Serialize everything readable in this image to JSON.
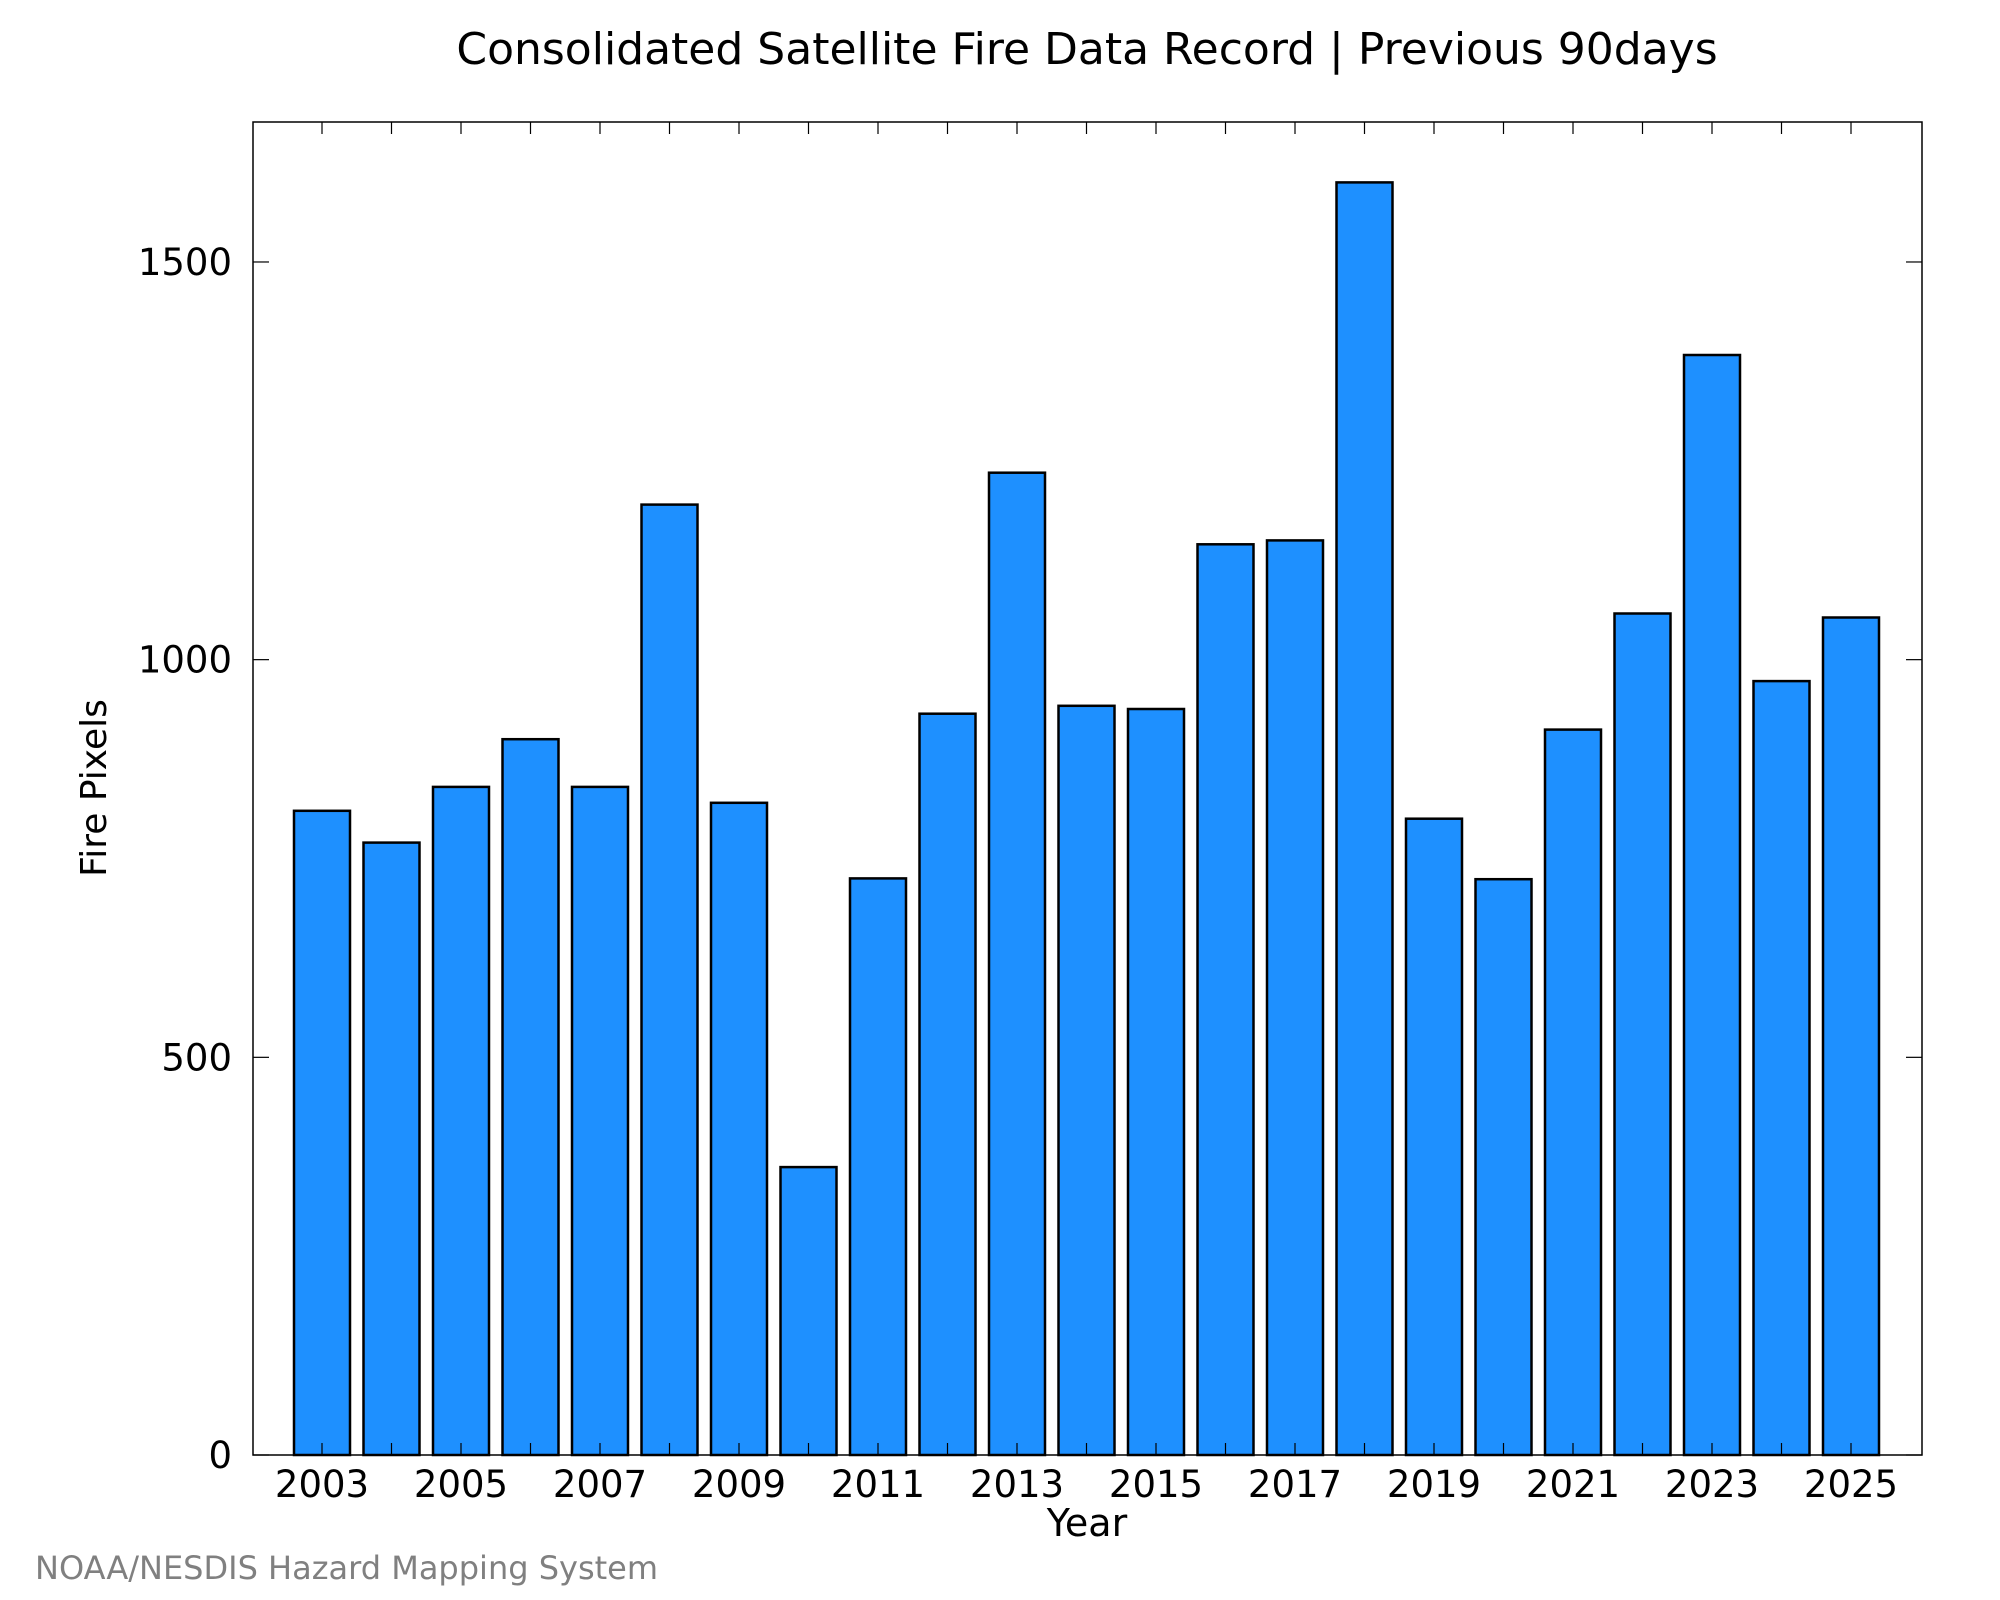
{
  "chart_data": {
    "type": "bar",
    "title": "Consolidated Satellite Fire Data Record | Previous 90days",
    "xlabel": "Year",
    "ylabel": "Fire Pixels",
    "categories": [
      "2003",
      "2004",
      "2005",
      "2006",
      "2007",
      "2008",
      "2009",
      "2010",
      "2011",
      "2012",
      "2013",
      "2014",
      "2015",
      "2016",
      "2017",
      "2018",
      "2019",
      "2020",
      "2021",
      "2022",
      "2023",
      "2024",
      "2025"
    ],
    "values": [
      810,
      770,
      840,
      900,
      840,
      1195,
      820,
      362,
      725,
      932,
      1235,
      942,
      938,
      1145,
      1150,
      1600,
      800,
      724,
      912,
      1058,
      1383,
      973,
      1053
    ],
    "x_tick_labels": [
      "2003",
      "2005",
      "2007",
      "2009",
      "2011",
      "2013",
      "2015",
      "2017",
      "2019",
      "2021",
      "2023",
      "2025"
    ],
    "y_ticks": [
      0,
      500,
      1000,
      1500
    ],
    "ylim": [
      0,
      1676
    ],
    "grid": false,
    "legend": "none"
  },
  "credit": "NOAA/NESDIS Hazard Mapping System",
  "colors": {
    "bar_fill": "#1e90ff",
    "bar_stroke": "#000000",
    "credit_text": "#808080",
    "axis": "#000000"
  }
}
